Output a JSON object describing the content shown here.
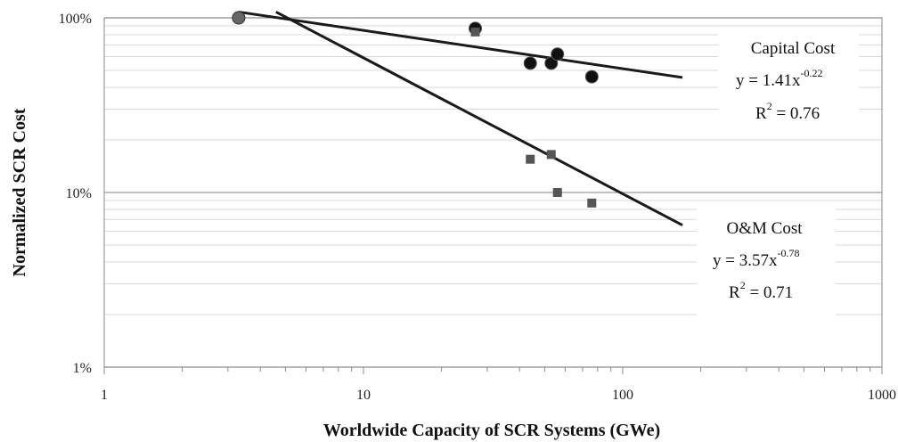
{
  "chart_data": {
    "type": "scatter",
    "x_scale": "log",
    "y_scale": "log",
    "xlim": [
      1,
      1000
    ],
    "ylim": [
      1,
      100
    ],
    "x_ticks": [
      "1",
      "10",
      "100",
      "1000"
    ],
    "y_ticks": [
      "1%",
      "10%",
      "100%"
    ],
    "xlabel": "Worldwide Capacity of SCR Systems (GWe)",
    "ylabel": "Normalized SCR Cost",
    "grid": "horizontal minor and major",
    "series": [
      {
        "marker": "circle",
        "points": [
          {
            "x": 3.3,
            "y": 100
          },
          {
            "x": 27,
            "y": 87
          },
          {
            "x": 44,
            "y": 55
          },
          {
            "x": 53,
            "y": 55
          },
          {
            "x": 56,
            "y": 62
          },
          {
            "x": 76,
            "y": 46
          }
        ],
        "trend": {
          "a": 1.41,
          "b": -0.22,
          "x_range": [
            3.3,
            170
          ]
        }
      },
      {
        "marker": "square",
        "points": [
          {
            "x": 3.3,
            "y": 100
          },
          {
            "x": 27,
            "y": 83
          },
          {
            "x": 44,
            "y": 15.5
          },
          {
            "x": 53,
            "y": 16.5
          },
          {
            "x": 56,
            "y": 10
          },
          {
            "x": 76,
            "y": 8.7
          }
        ],
        "trend": {
          "a": 3.57,
          "b": -0.78,
          "x_range": [
            4.6,
            170
          ]
        }
      }
    ],
    "annotations": [
      {
        "id": "capital",
        "lines": [
          "Capital Cost",
          "y = 1.41x",
          "R",
          " = 0.76"
        ],
        "exponent": "-0.22",
        "r_sup": "2"
      },
      {
        "id": "om",
        "lines": [
          "O&M Cost",
          "y = 3.57x",
          "R",
          " = 0.71"
        ],
        "exponent": "-0.78",
        "r_sup": "2"
      }
    ]
  }
}
